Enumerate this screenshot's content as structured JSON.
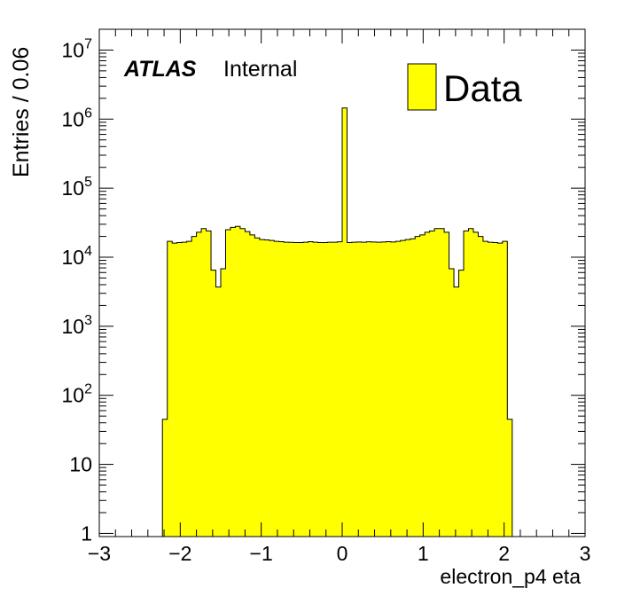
{
  "chart_data": {
    "type": "bar",
    "histogram": true,
    "xlabel": "electron_p4 eta",
    "ylabel": "Entries / 0.06",
    "xlim": [
      -3,
      3
    ],
    "ylim": [
      0.9,
      20000000
    ],
    "yscale": "log",
    "x_ticks": [
      "−3",
      "−2",
      "−1",
      "0",
      "1",
      "2",
      "3"
    ],
    "y_ticks": [
      {
        "base": "1",
        "exp": ""
      },
      {
        "base": "10",
        "exp": ""
      },
      {
        "base": "10",
        "exp": "2"
      },
      {
        "base": "10",
        "exp": "3"
      },
      {
        "base": "10",
        "exp": "4"
      },
      {
        "base": "10",
        "exp": "5"
      },
      {
        "base": "10",
        "exp": "6"
      },
      {
        "base": "10",
        "exp": "7"
      }
    ],
    "bin_width": 0.06,
    "bin_start": -2.22,
    "values": [
      45,
      17000,
      16000,
      16300,
      16500,
      17000,
      20000,
      23000,
      26000,
      24000,
      6500,
      3700,
      6800,
      25000,
      27000,
      28000,
      26000,
      23500,
      21000,
      19000,
      18000,
      17800,
      17500,
      17000,
      16800,
      16500,
      16400,
      16300,
      16300,
      16500,
      16800,
      16500,
      16300,
      16300,
      16500,
      16500,
      16700,
      1450000,
      16300,
      16500,
      16600,
      16500,
      16700,
      16600,
      16500,
      16600,
      16800,
      16600,
      17000,
      17500,
      18000,
      18500,
      20000,
      21000,
      23000,
      24000,
      26000,
      26000,
      23000,
      6800,
      3700,
      6500,
      24000,
      26000,
      23000,
      20000,
      17000,
      16500,
      16300,
      16000,
      17000,
      45
    ],
    "series": [
      {
        "name": "Data",
        "color": "#ffff00"
      }
    ],
    "legend_position": "top-right",
    "annotations": {
      "atlas": "ATLAS",
      "internal": "Internal"
    },
    "grid": false
  }
}
